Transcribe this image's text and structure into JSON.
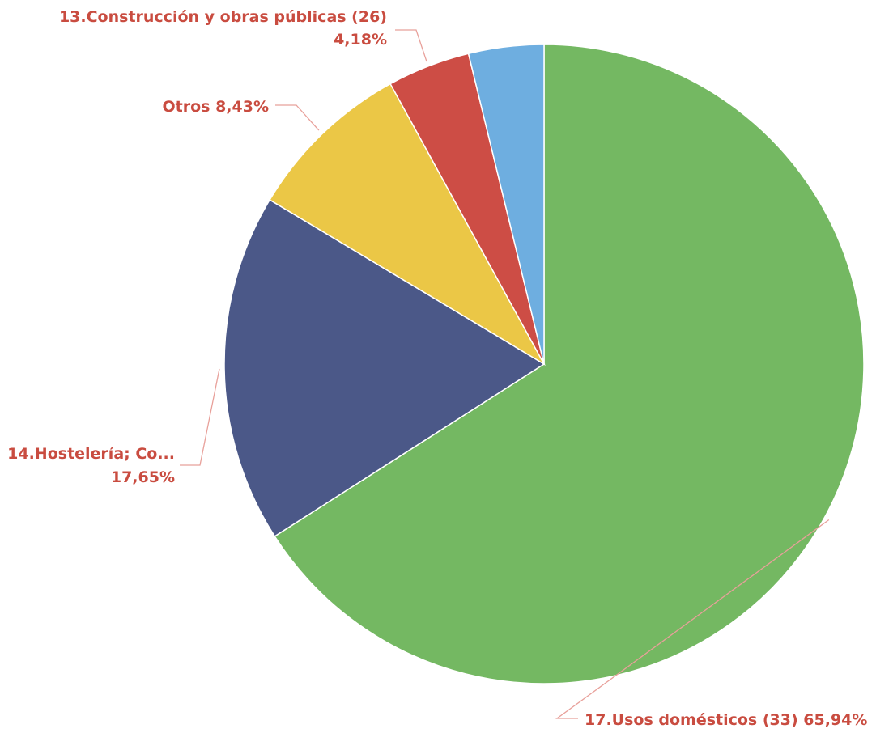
{
  "chart_data": {
    "type": "pie",
    "title": "",
    "start": "12 o'clock",
    "direction": "clockwise",
    "label_color": "#c94c40",
    "leader_color": "#e8a09a",
    "slices": [
      {
        "label": "17.Usos domésticos (33)",
        "value": 65.94,
        "value_label": "65,94%",
        "color": "#74b862"
      },
      {
        "label": "14.Hostelería; Co...",
        "value": 17.65,
        "value_label": "17,65%",
        "color": "#4b5888"
      },
      {
        "label": "Otros",
        "value": 8.43,
        "value_label": "8,43%",
        "color": "#ebc746"
      },
      {
        "label": "13.Construcción y obras públicas (26)",
        "value": 4.18,
        "value_label": "4,18%",
        "color": "#cd4d45"
      },
      {
        "label": "",
        "value": 3.8,
        "value_label": "",
        "color": "#6eaee0"
      }
    ]
  }
}
